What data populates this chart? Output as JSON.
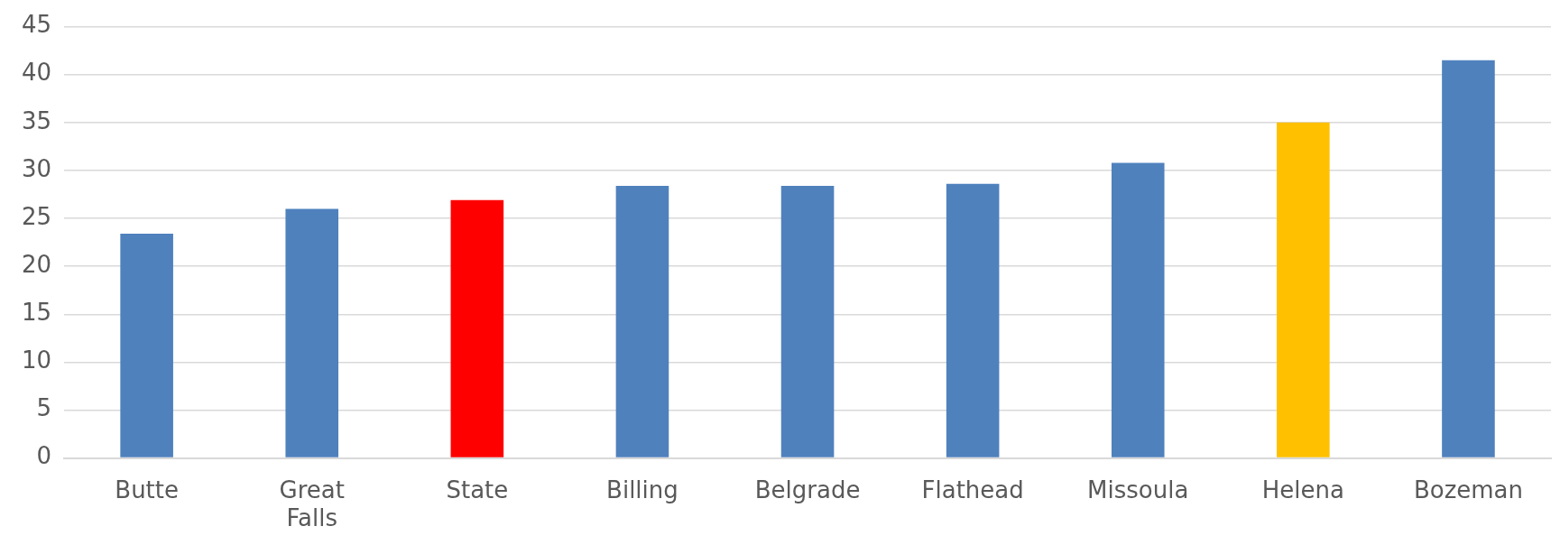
{
  "chart_data": {
    "type": "bar",
    "categories": [
      "Butte",
      "Great Falls",
      "State",
      "Billing",
      "Belgrade",
      "Flathead",
      "Missoula",
      "Helena",
      "Bozeman"
    ],
    "values": [
      23.4,
      26.0,
      26.9,
      28.4,
      28.4,
      28.6,
      30.8,
      35.0,
      41.5
    ],
    "colors": [
      "#4f81bd",
      "#4f81bd",
      "#ff0000",
      "#4f81bd",
      "#4f81bd",
      "#4f81bd",
      "#4f81bd",
      "#ffc000",
      "#4f81bd"
    ],
    "ylim": [
      0,
      45
    ],
    "yticks": [
      0,
      5,
      10,
      15,
      20,
      25,
      30,
      35,
      40,
      45
    ],
    "grid": "y",
    "legend": false
  }
}
